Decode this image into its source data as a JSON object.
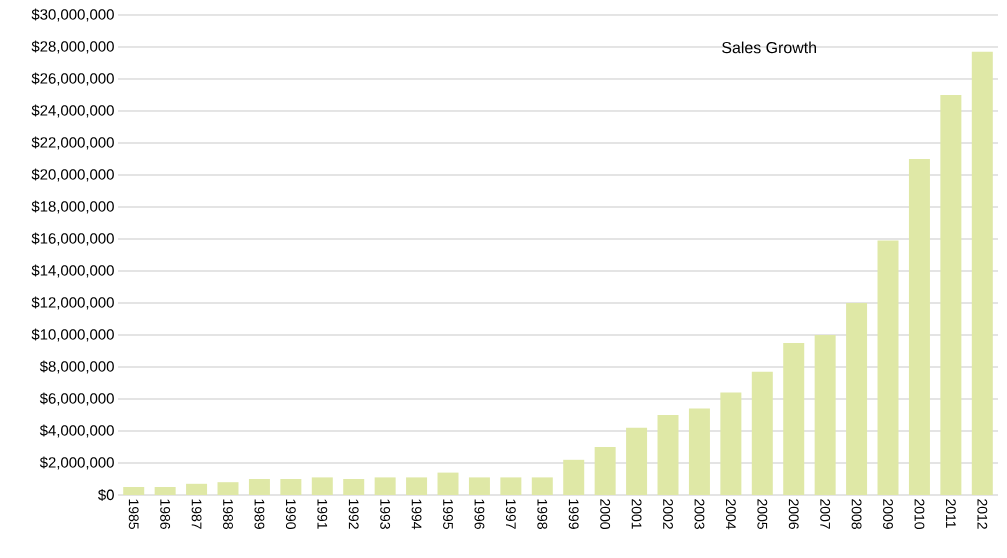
{
  "chart_data": {
    "type": "bar",
    "title": "Sales Growth",
    "categories": [
      "1985",
      "1986",
      "1987",
      "1988",
      "1989",
      "1990",
      "1991",
      "1992",
      "1993",
      "1994",
      "1995",
      "1996",
      "1997",
      "1998",
      "1999",
      "2000",
      "2001",
      "2002",
      "2003",
      "2004",
      "2005",
      "2006",
      "2007",
      "2008",
      "2009",
      "2010",
      "2011",
      "2012"
    ],
    "values": [
      500000,
      500000,
      700000,
      800000,
      1000000,
      1000000,
      1100000,
      1000000,
      1100000,
      1100000,
      1400000,
      1100000,
      1100000,
      1100000,
      2200000,
      3000000,
      4200000,
      5000000,
      5400000,
      6400000,
      7700000,
      9500000,
      10000000,
      12000000,
      15900000,
      21000000,
      25000000,
      27700000
    ],
    "color": "#dfe8a6",
    "ylim": [
      0,
      30000000
    ],
    "yticks": [
      {
        "value": 0,
        "label": "$0"
      },
      {
        "value": 2000000,
        "label": "$2,000,000"
      },
      {
        "value": 4000000,
        "label": "$4,000,000"
      },
      {
        "value": 6000000,
        "label": "$6,000,000"
      },
      {
        "value": 8000000,
        "label": "$8,000,000"
      },
      {
        "value": 10000000,
        "label": "$10,000,000"
      },
      {
        "value": 12000000,
        "label": "$12,000,000"
      },
      {
        "value": 14000000,
        "label": "$14,000,000"
      },
      {
        "value": 16000000,
        "label": "$16,000,000"
      },
      {
        "value": 18000000,
        "label": "$18,000,000"
      },
      {
        "value": 20000000,
        "label": "$20,000,000"
      },
      {
        "value": 22000000,
        "label": "$22,000,000"
      },
      {
        "value": 24000000,
        "label": "$24,000,000"
      },
      {
        "value": 26000000,
        "label": "$26,000,000"
      },
      {
        "value": 28000000,
        "label": "$28,000,000"
      },
      {
        "value": 30000000,
        "label": "$30,000,000"
      }
    ],
    "grid": "y"
  }
}
